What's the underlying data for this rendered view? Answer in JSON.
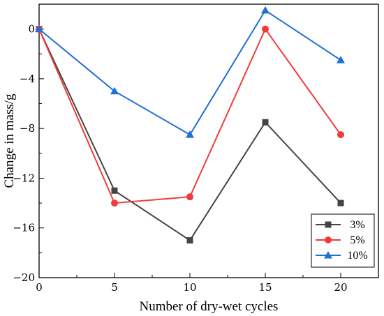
{
  "chart_data": {
    "type": "line",
    "title": "",
    "xlabel": "Number of dry-wet cycles",
    "ylabel": "Change in mass/g",
    "x": [
      0,
      5,
      10,
      15,
      20
    ],
    "xlim": [
      0,
      22.5
    ],
    "ylim": [
      -20,
      2
    ],
    "xticks": [
      0,
      5,
      10,
      15,
      20
    ],
    "yticks": [
      0,
      -4,
      -8,
      -12,
      -16,
      -20
    ],
    "grid": false,
    "legend_position": "bottom-right",
    "series": [
      {
        "name": "3%",
        "color": "#444444",
        "marker": "square",
        "values": [
          0,
          -13,
          -17,
          -7.5,
          -14
        ]
      },
      {
        "name": "5%",
        "color": "#ef3b3b",
        "marker": "circle",
        "values": [
          0,
          -14,
          -13.5,
          0,
          -8.5
        ]
      },
      {
        "name": "10%",
        "color": "#1f6fd6",
        "marker": "triangle",
        "values": [
          0,
          -5,
          -8.5,
          1.5,
          -2.5
        ]
      }
    ]
  }
}
